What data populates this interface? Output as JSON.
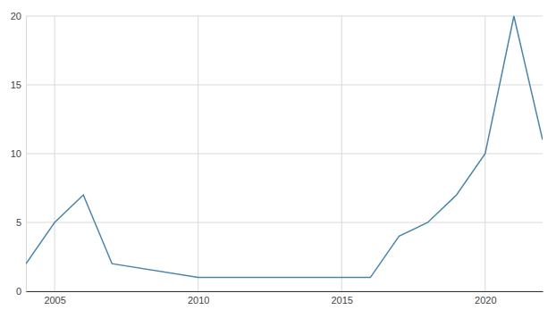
{
  "chart_data": {
    "type": "line",
    "x": [
      2004,
      2005,
      2006,
      2007,
      2010,
      2011,
      2012,
      2013,
      2014,
      2015,
      2016,
      2017,
      2018,
      2019,
      2020,
      2021,
      2022
    ],
    "values": [
      2,
      5,
      7,
      2,
      1,
      1,
      1,
      1,
      1,
      1,
      1,
      4,
      5,
      7,
      10,
      20,
      11
    ],
    "color": "#4a86a8",
    "xlim": [
      2004,
      2022
    ],
    "xticks": [
      2005,
      2010,
      2015,
      2020
    ],
    "ylim": [
      0,
      20
    ],
    "yticks": [
      0,
      5,
      10,
      15,
      20
    ],
    "grid": true
  }
}
